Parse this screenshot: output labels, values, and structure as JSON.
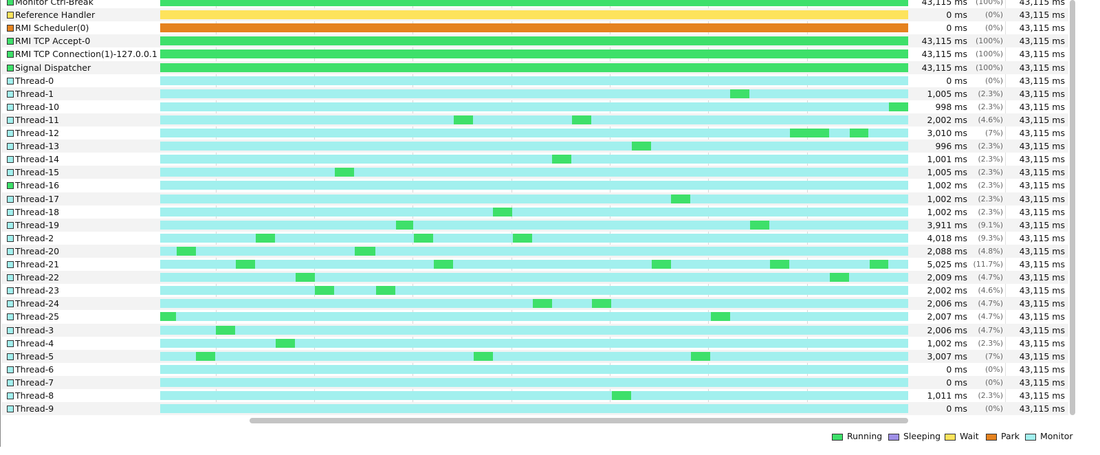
{
  "rows": [
    {
      "name": "Monitor Ctrl-Break",
      "running": "43,115 ms",
      "percent": "(100%)",
      "total": "43,115 ms"
    },
    {
      "name": "Reference Handler",
      "running": "0 ms",
      "percent": "(0%)",
      "total": "43,115 ms"
    },
    {
      "name": "RMI Scheduler(0)",
      "running": "0 ms",
      "percent": "(0%)",
      "total": "43,115 ms"
    },
    {
      "name": "RMI TCP Accept-0",
      "running": "43,115 ms",
      "percent": "(100%)",
      "total": "43,115 ms"
    },
    {
      "name": "RMI TCP Connection(1)-127.0.0.1",
      "running": "43,115 ms",
      "percent": "(100%)",
      "total": "43,115 ms"
    },
    {
      "name": "Signal Dispatcher",
      "running": "43,115 ms",
      "percent": "(100%)",
      "total": "43,115 ms"
    },
    {
      "name": "Thread-0",
      "running": "0 ms",
      "percent": "(0%)",
      "total": "43,115 ms"
    },
    {
      "name": "Thread-1",
      "running": "1,005 ms",
      "percent": "(2.3%)",
      "total": "43,115 ms"
    },
    {
      "name": "Thread-10",
      "running": "998 ms",
      "percent": "(2.3%)",
      "total": "43,115 ms"
    },
    {
      "name": "Thread-11",
      "running": "2,002 ms",
      "percent": "(4.6%)",
      "total": "43,115 ms"
    },
    {
      "name": "Thread-12",
      "running": "3,010 ms",
      "percent": "(7%)",
      "total": "43,115 ms"
    },
    {
      "name": "Thread-13",
      "running": "996 ms",
      "percent": "(2.3%)",
      "total": "43,115 ms"
    },
    {
      "name": "Thread-14",
      "running": "1,001 ms",
      "percent": "(2.3%)",
      "total": "43,115 ms"
    },
    {
      "name": "Thread-15",
      "running": "1,005 ms",
      "percent": "(2.3%)",
      "total": "43,115 ms"
    },
    {
      "name": "Thread-16",
      "running": "1,002 ms",
      "percent": "(2.3%)",
      "total": "43,115 ms"
    },
    {
      "name": "Thread-17",
      "running": "1,002 ms",
      "percent": "(2.3%)",
      "total": "43,115 ms"
    },
    {
      "name": "Thread-18",
      "running": "1,002 ms",
      "percent": "(2.3%)",
      "total": "43,115 ms"
    },
    {
      "name": "Thread-19",
      "running": "3,911 ms",
      "percent": "(9.1%)",
      "total": "43,115 ms"
    },
    {
      "name": "Thread-2",
      "running": "4,018 ms",
      "percent": "(9.3%)",
      "total": "43,115 ms"
    },
    {
      "name": "Thread-20",
      "running": "2,088 ms",
      "percent": "(4.8%)",
      "total": "43,115 ms"
    },
    {
      "name": "Thread-21",
      "running": "5,025 ms",
      "percent": "(11.7%)",
      "total": "43,115 ms"
    },
    {
      "name": "Thread-22",
      "running": "2,009 ms",
      "percent": "(4.7%)",
      "total": "43,115 ms"
    },
    {
      "name": "Thread-23",
      "running": "2,002 ms",
      "percent": "(4.6%)",
      "total": "43,115 ms"
    },
    {
      "name": "Thread-24",
      "running": "2,006 ms",
      "percent": "(4.7%)",
      "total": "43,115 ms"
    },
    {
      "name": "Thread-25",
      "running": "2,007 ms",
      "percent": "(4.7%)",
      "total": "43,115 ms"
    },
    {
      "name": "Thread-3",
      "running": "2,006 ms",
      "percent": "(4.7%)",
      "total": "43,115 ms"
    },
    {
      "name": "Thread-4",
      "running": "1,002 ms",
      "percent": "(2.3%)",
      "total": "43,115 ms"
    },
    {
      "name": "Thread-5",
      "running": "3,007 ms",
      "percent": "(7%)",
      "total": "43,115 ms"
    },
    {
      "name": "Thread-6",
      "running": "0 ms",
      "percent": "(0%)",
      "total": "43,115 ms"
    },
    {
      "name": "Thread-7",
      "running": "0 ms",
      "percent": "(0%)",
      "total": "43,115 ms"
    },
    {
      "name": "Thread-8",
      "running": "1,011 ms",
      "percent": "(2.3%)",
      "total": "43,115 ms"
    },
    {
      "name": "Thread-9",
      "running": "0 ms",
      "percent": "(0%)",
      "total": "43,115 ms"
    }
  ],
  "legend": [
    "Running",
    "Sleeping",
    "Wait",
    "Park",
    "Monitor"
  ]
}
